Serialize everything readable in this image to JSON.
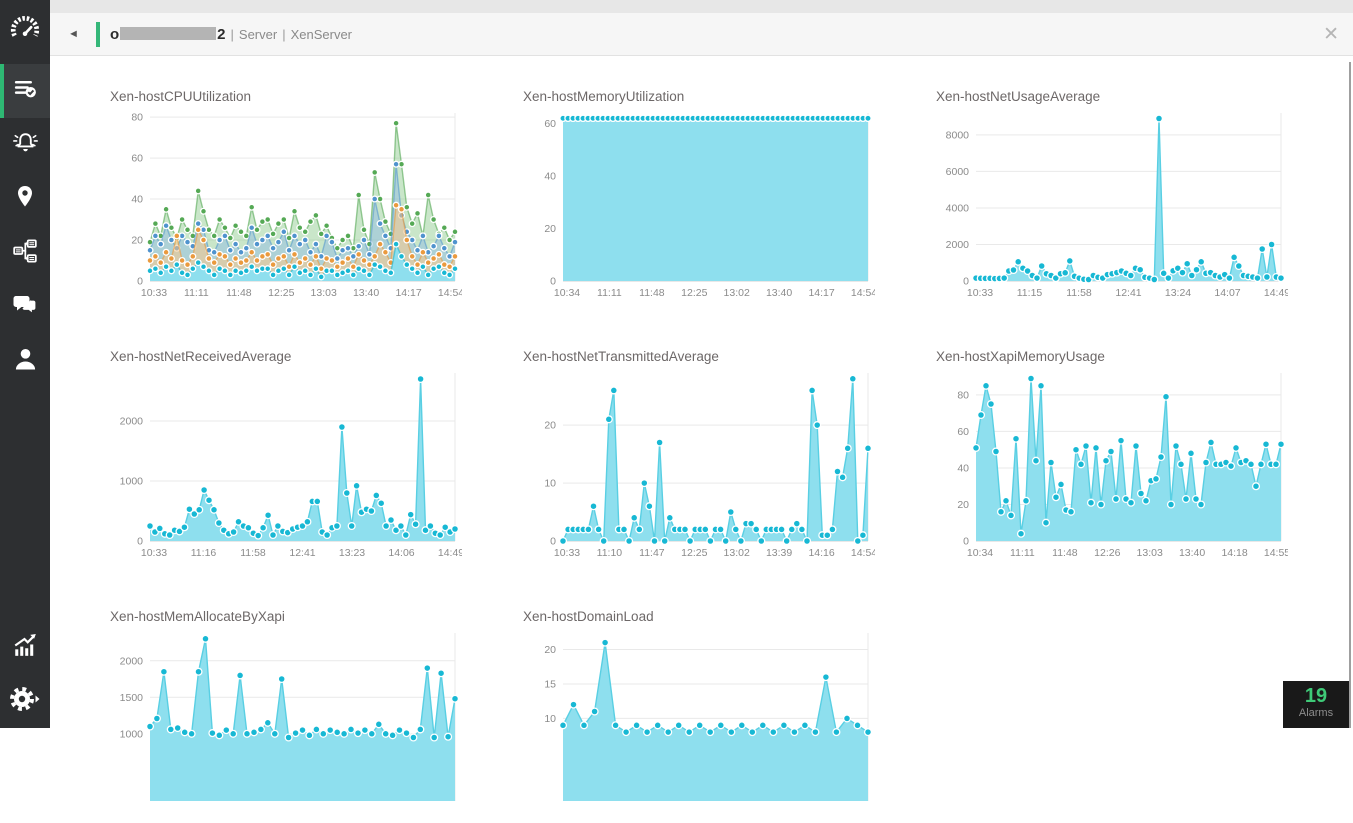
{
  "header": {
    "back_icon": "◄",
    "title_prefix": "o",
    "title_suffix": "2",
    "sep": "|",
    "crumbs": [
      "Server",
      "XenServer"
    ],
    "close_icon": "✕"
  },
  "sidebar": {
    "items": [
      {
        "name": "gauge-logo"
      },
      {
        "name": "monitor-list-check",
        "active": true
      },
      {
        "name": "alarm-bell"
      },
      {
        "name": "location-pin"
      },
      {
        "name": "topology-workflow"
      },
      {
        "name": "chat-bubbles"
      },
      {
        "name": "user-person"
      },
      {
        "name": "reports-chart"
      },
      {
        "name": "settings-gear"
      }
    ]
  },
  "alarms": {
    "count": "19",
    "label": "Alarms"
  },
  "colors": {
    "accent_green": "#2eb873",
    "cyan_fill": "#8edfee",
    "cyan_dot": "#17b8d4",
    "sidebar_bg": "#2d2f31"
  },
  "chart_data": [
    {
      "type": "area",
      "title": "Xen-hostCPUUtilization",
      "ylim": [
        0,
        82
      ],
      "yticks": [
        0,
        20,
        40,
        60,
        80
      ],
      "xticks": [
        "10:33",
        "11:11",
        "11:48",
        "12:25",
        "13:03",
        "13:40",
        "14:17",
        "14:54"
      ],
      "dot_r": 2.9,
      "series": [
        {
          "name": "green",
          "dot": "#55a955",
          "line": "rgba(85,169,85,0.6)",
          "fill": "rgba(135,200,135,0.45)",
          "values": [
            19,
            28,
            22,
            35,
            26,
            21,
            30,
            25,
            22,
            44,
            34,
            25,
            22,
            30,
            26,
            21,
            27,
            24,
            22,
            36,
            25,
            29,
            30,
            23,
            28,
            30,
            21,
            34,
            26,
            24,
            29,
            32,
            23,
            27,
            21,
            16,
            20,
            22,
            16,
            42,
            25,
            18,
            53,
            40,
            29,
            23,
            77,
            57,
            36,
            28,
            33,
            22,
            42,
            30,
            23,
            26,
            20,
            24
          ]
        },
        {
          "name": "blue",
          "dot": "#4f93ce",
          "line": "rgba(79,147,206,0.55)",
          "fill": "rgba(140,185,230,0.45)",
          "values": [
            15,
            22,
            18,
            27,
            20,
            16,
            22,
            19,
            17,
            28,
            25,
            15,
            14,
            20,
            22,
            15,
            18,
            14,
            16,
            26,
            18,
            20,
            22,
            16,
            19,
            24,
            15,
            22,
            18,
            20,
            14,
            18,
            12,
            22,
            19,
            11,
            15,
            16,
            12,
            17,
            20,
            13,
            40,
            28,
            22,
            16,
            57,
            32,
            24,
            20,
            15,
            22,
            14,
            17,
            22,
            16,
            12,
            19
          ]
        },
        {
          "name": "orange",
          "dot": "#ea9a3e",
          "line": "rgba(234,154,62,0.6)",
          "fill": "rgba(247,200,140,0.55)",
          "values": [
            10,
            12,
            9,
            14,
            11,
            22,
            10,
            8,
            12,
            25,
            20,
            11,
            9,
            13,
            12,
            8,
            11,
            9,
            10,
            14,
            10,
            12,
            13,
            8,
            11,
            12,
            7,
            13,
            9,
            11,
            8,
            12,
            6,
            11,
            10,
            7,
            9,
            11,
            7,
            13,
            10,
            8,
            12,
            18,
            14,
            9,
            37,
            35,
            20,
            12,
            8,
            14,
            9,
            11,
            13,
            8,
            7,
            12
          ]
        },
        {
          "name": "cyan",
          "dot": "#17b8d4",
          "line": "rgba(23,184,212,0.6)",
          "fill": "#8edfee",
          "values": [
            5,
            6,
            4,
            7,
            5,
            8,
            4,
            3,
            6,
            9,
            7,
            5,
            3,
            6,
            5,
            3,
            5,
            4,
            5,
            7,
            5,
            6,
            6,
            3,
            5,
            6,
            3,
            7,
            4,
            5,
            3,
            6,
            2,
            5,
            5,
            3,
            4,
            5,
            3,
            6,
            5,
            3,
            8,
            7,
            5,
            4,
            18,
            12,
            8,
            6,
            4,
            7,
            3,
            6,
            7,
            4,
            3,
            6
          ]
        }
      ]
    },
    {
      "type": "area",
      "title": "Xen-hostMemoryUtilization",
      "ylim": [
        0,
        64
      ],
      "yticks": [
        0,
        20,
        40,
        60
      ],
      "xticks": [
        "10:34",
        "11:11",
        "11:48",
        "12:25",
        "13:02",
        "13:40",
        "14:17",
        "14:54"
      ],
      "dot_r": 3.1,
      "series": [
        {
          "name": "memory",
          "dot": "#17b8d4",
          "line": "#59cfe3",
          "fill": "#8edfee",
          "values": [
            62,
            62,
            62,
            62,
            62,
            62,
            62,
            62,
            62,
            62,
            62,
            62,
            62,
            62,
            62,
            62,
            62,
            62,
            62,
            62,
            62,
            62,
            62,
            62,
            62,
            62,
            62,
            62,
            62,
            62,
            62,
            62,
            62,
            62,
            62,
            62,
            62,
            62,
            62,
            62,
            62,
            62,
            62,
            62,
            62,
            62,
            62,
            62,
            62,
            62,
            62,
            62,
            62,
            62,
            62,
            62,
            62,
            62,
            62,
            62,
            62,
            62
          ]
        }
      ]
    },
    {
      "type": "area",
      "title": "Xen-hostNetUsageAverage",
      "ylim": [
        0,
        9200
      ],
      "yticks": [
        0,
        2000,
        4000,
        6000,
        8000
      ],
      "xticks": [
        "10:33",
        "11:15",
        "11:58",
        "12:41",
        "13:24",
        "14:07",
        "14:49"
      ],
      "dot_r": 3.4,
      "series": [
        {
          "name": "netusage",
          "dot": "#17b8d4",
          "line": "#59cfe3",
          "fill": "#8edfee",
          "values": [
            160,
            150,
            140,
            150,
            130,
            140,
            160,
            550,
            600,
            1050,
            700,
            550,
            300,
            160,
            820,
            400,
            300,
            160,
            400,
            450,
            1100,
            260,
            160,
            100,
            80,
            300,
            200,
            160,
            350,
            400,
            460,
            550,
            420,
            300,
            700,
            620,
            200,
            160,
            80,
            8900,
            420,
            160,
            560,
            700,
            460,
            950,
            300,
            620,
            1050,
            420,
            460,
            300,
            220,
            350,
            160,
            1300,
            820,
            300,
            260,
            220,
            160,
            1750,
            220,
            2000,
            220,
            160
          ]
        }
      ]
    },
    {
      "type": "area",
      "title": "Xen-hostNetReceivedAverage",
      "ylim": [
        0,
        2800
      ],
      "yticks": [
        0,
        1000,
        2000
      ],
      "xticks": [
        "10:33",
        "11:16",
        "11:58",
        "12:41",
        "13:23",
        "14:06",
        "14:49"
      ],
      "dot_r": 3.4,
      "series": [
        {
          "name": "netreceived",
          "dot": "#17b8d4",
          "line": "#59cfe3",
          "fill": "#8edfee",
          "values": [
            250,
            150,
            210,
            120,
            100,
            180,
            160,
            230,
            530,
            450,
            520,
            850,
            680,
            520,
            300,
            180,
            120,
            150,
            320,
            250,
            220,
            130,
            90,
            220,
            430,
            100,
            250,
            160,
            140,
            200,
            230,
            250,
            320,
            660,
            660,
            150,
            100,
            220,
            250,
            1900,
            800,
            250,
            920,
            480,
            530,
            500,
            760,
            630,
            250,
            350,
            180,
            250,
            100,
            440,
            280,
            2700,
            180,
            250,
            130,
            100,
            230,
            150,
            200
          ]
        }
      ]
    },
    {
      "type": "area",
      "title": "Xen-hostNetTransmittedAverage",
      "ylim": [
        0,
        29
      ],
      "yticks": [
        0,
        10,
        20
      ],
      "xticks": [
        "10:33",
        "11:10",
        "11:47",
        "12:25",
        "13:02",
        "13:39",
        "14:16",
        "14:54"
      ],
      "dot_r": 3.4,
      "series": [
        {
          "name": "nettransmitted",
          "dot": "#17b8d4",
          "line": "#59cfe3",
          "fill": "#8edfee",
          "values": [
            0,
            2,
            2,
            2,
            2,
            2,
            6,
            2,
            0,
            21,
            26,
            2,
            2,
            0,
            4,
            2,
            10,
            6,
            0,
            17,
            0,
            4,
            2,
            2,
            2,
            0,
            2,
            2,
            2,
            0,
            2,
            2,
            0,
            5,
            2,
            0,
            3,
            3,
            2,
            0,
            2,
            2,
            2,
            2,
            0,
            2,
            3,
            2,
            0,
            26,
            20,
            1,
            1,
            2,
            12,
            11,
            16,
            28,
            0,
            1,
            16
          ]
        }
      ]
    },
    {
      "type": "area",
      "title": "Xen-hostXapiMemoryUsage",
      "ylim": [
        0,
        92
      ],
      "yticks": [
        0,
        20,
        40,
        60,
        80
      ],
      "xticks": [
        "10:34",
        "11:11",
        "11:48",
        "12:26",
        "13:03",
        "13:40",
        "14:18",
        "14:55"
      ],
      "dot_r": 3.4,
      "series": [
        {
          "name": "xapimemory",
          "dot": "#17b8d4",
          "line": "#59cfe3",
          "fill": "#8edfee",
          "values": [
            51,
            69,
            85,
            75,
            49,
            16,
            22,
            14,
            56,
            4,
            22,
            89,
            44,
            85,
            10,
            43,
            24,
            31,
            17,
            16,
            50,
            42,
            52,
            21,
            51,
            20,
            44,
            49,
            23,
            55,
            23,
            21,
            52,
            26,
            22,
            33,
            34,
            46,
            79,
            20,
            52,
            42,
            23,
            48,
            23,
            20,
            43,
            54,
            42,
            42,
            43,
            41,
            51,
            43,
            44,
            42,
            30,
            42,
            53,
            42,
            42,
            53
          ]
        }
      ]
    },
    {
      "type": "area",
      "title": "Xen-hostMemAllocateByXapi",
      "ylim": [
        80,
        2380
      ],
      "yticks": [
        1000,
        1500,
        2000
      ],
      "xticks": [],
      "dot_r": 3.4,
      "series": [
        {
          "name": "memallocate",
          "dot": "#17b8d4",
          "line": "#59cfe3",
          "fill": "#8edfee",
          "values": [
            1100,
            1210,
            1850,
            1060,
            1080,
            1020,
            1000,
            1850,
            2300,
            1010,
            980,
            1050,
            1000,
            1800,
            1000,
            1020,
            1060,
            1150,
            1000,
            1750,
            950,
            1010,
            1050,
            980,
            1060,
            1000,
            1050,
            1020,
            1000,
            1060,
            1010,
            1050,
            1000,
            1130,
            1000,
            980,
            1050,
            1010,
            950,
            1060,
            1900,
            950,
            1830,
            960,
            1480
          ]
        }
      ]
    },
    {
      "type": "area",
      "title": "Xen-hostDomainLoad",
      "ylim": [
        -2,
        22.4
      ],
      "yticks": [
        10,
        15,
        20
      ],
      "xticks": [],
      "dot_r": 3.4,
      "series": [
        {
          "name": "domainload",
          "dot": "#17b8d4",
          "line": "#59cfe3",
          "fill": "#8edfee",
          "values": [
            9,
            12,
            9,
            11,
            21,
            9,
            8,
            9,
            8,
            9,
            8,
            9,
            8,
            9,
            8,
            9,
            8,
            9,
            8,
            9,
            8,
            9,
            8,
            9,
            8,
            16,
            8,
            10,
            9,
            8
          ]
        }
      ]
    }
  ]
}
